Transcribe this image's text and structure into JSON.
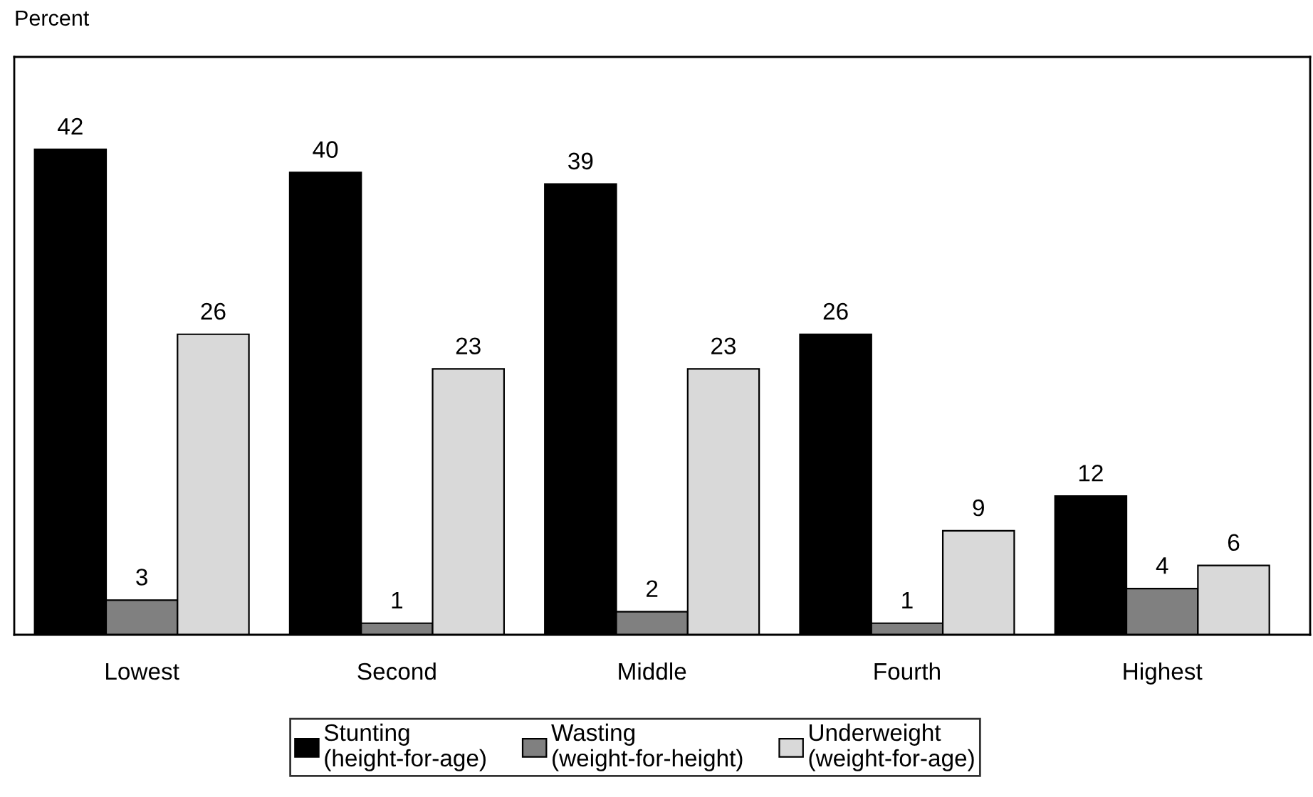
{
  "chart_data": {
    "type": "bar",
    "ylabel": "Percent",
    "categories": [
      "Lowest",
      "Second",
      "Middle",
      "Fourth",
      "Highest"
    ],
    "series": [
      {
        "name": "Stunting\n(height-for-age)",
        "color": "#000000",
        "values": [
          42,
          40,
          39,
          26,
          12
        ]
      },
      {
        "name": "Wasting\n(weight-for-height)",
        "color": "#808080",
        "values": [
          3,
          1,
          2,
          1,
          4
        ]
      },
      {
        "name": "Underweight\n(weight-for-age)",
        "color": "#d9d9d9",
        "values": [
          26,
          23,
          23,
          9,
          6
        ]
      }
    ],
    "ylim": [
      0,
      50
    ],
    "data_labels": true,
    "grid": false,
    "legend": "bottom"
  }
}
